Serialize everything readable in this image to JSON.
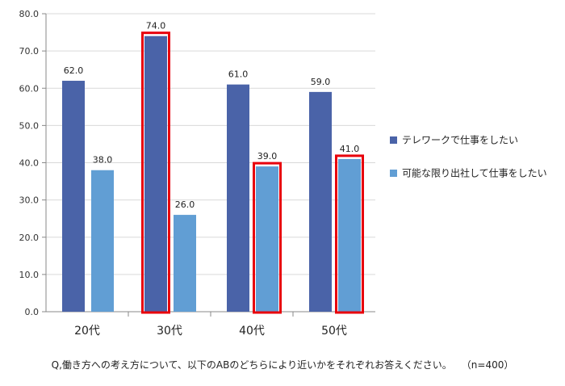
{
  "chart_data": {
    "type": "bar",
    "categories": [
      "20代",
      "30代",
      "40代",
      "50代"
    ],
    "series": [
      {
        "name": "テレワークで仕事をしたい",
        "color": "#4a63a8",
        "values": [
          62.0,
          74.0,
          61.0,
          59.0
        ]
      },
      {
        "name": "可能な限り出社して仕事をしたい",
        "color": "#619ed4",
        "values": [
          38.0,
          26.0,
          39.0,
          41.0
        ]
      }
    ],
    "ylim": [
      0,
      80
    ],
    "yticks": [
      "0.0",
      "10.0",
      "20.0",
      "30.0",
      "40.0",
      "50.0",
      "60.0",
      "70.0",
      "80.0"
    ],
    "data_labels": [
      [
        "62.0",
        "74.0",
        "61.0",
        "59.0"
      ],
      [
        "38.0",
        "26.0",
        "39.0",
        "41.0"
      ]
    ],
    "highlight_color": "#e8000b",
    "highlighted": [
      {
        "series": 0,
        "category": 1
      },
      {
        "series": 1,
        "category": 2
      },
      {
        "series": 1,
        "category": 3
      }
    ],
    "legend_position": "right",
    "grid": true
  },
  "footnote": {
    "question": "Q,働き方への考え方について、以下のABのどちらにより近いかをそれぞれお答えください。",
    "sample": "（n=400）"
  }
}
